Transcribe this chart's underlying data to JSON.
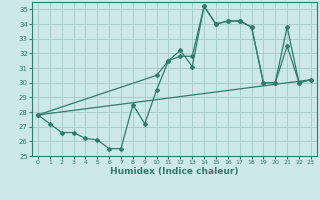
{
  "xlabel": "Humidex (Indice chaleur)",
  "xlim": [
    -0.5,
    23.5
  ],
  "ylim": [
    25,
    35.5
  ],
  "yticks": [
    25,
    26,
    27,
    28,
    29,
    30,
    31,
    32,
    33,
    34,
    35
  ],
  "xticks": [
    0,
    1,
    2,
    3,
    4,
    5,
    6,
    7,
    8,
    9,
    10,
    11,
    12,
    13,
    14,
    15,
    16,
    17,
    18,
    19,
    20,
    21,
    22,
    23
  ],
  "bg_color": "#cce8e8",
  "grid_color": "#aacccc",
  "line_color": "#2e7d6e",
  "line1_x": [
    0,
    1,
    2,
    3,
    4,
    5,
    6,
    7,
    8,
    9,
    10,
    11,
    12,
    13,
    14,
    15,
    16,
    17,
    18,
    19,
    20,
    21,
    22,
    23
  ],
  "line1_y": [
    27.8,
    27.2,
    26.6,
    26.6,
    26.2,
    26.1,
    25.5,
    25.5,
    28.5,
    27.2,
    29.5,
    31.5,
    32.2,
    31.1,
    35.2,
    34.0,
    34.2,
    34.2,
    33.8,
    30.0,
    30.0,
    32.5,
    30.0,
    30.2
  ],
  "line2_x": [
    0,
    10,
    11,
    12,
    13,
    14,
    15,
    16,
    17,
    18,
    19,
    20,
    21,
    22,
    23
  ],
  "line2_y": [
    27.8,
    30.5,
    31.5,
    31.8,
    31.8,
    35.2,
    34.0,
    34.2,
    34.2,
    33.8,
    30.0,
    30.0,
    33.8,
    30.0,
    30.2
  ],
  "line3_x": [
    0,
    23
  ],
  "line3_y": [
    27.8,
    30.2
  ]
}
